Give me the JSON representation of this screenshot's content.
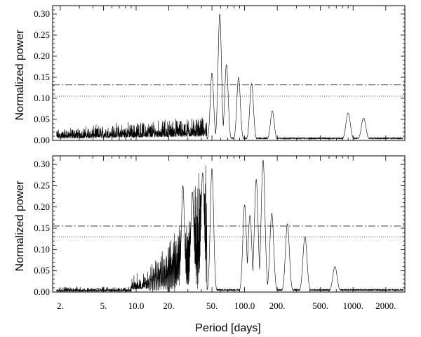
{
  "chart_data": [
    {
      "type": "line",
      "panel": "top",
      "xlabel": "",
      "ylabel": "Normalized power",
      "xscale": "log",
      "xlim": [
        1.7,
        3000
      ],
      "ylim": [
        0,
        0.32
      ],
      "yticks": [
        "0.00",
        "0.05",
        "0.10",
        "0.15",
        "0.20",
        "0.25",
        "0.30"
      ],
      "xticks": [],
      "thresholds": [
        {
          "style": "dash-dot",
          "value": 0.132
        },
        {
          "style": "dotted",
          "value": 0.105
        }
      ],
      "peaks": [
        {
          "period": 50,
          "power": 0.16
        },
        {
          "period": 59,
          "power": 0.3
        },
        {
          "period": 68,
          "power": 0.18
        },
        {
          "period": 88,
          "power": 0.15
        },
        {
          "period": 116,
          "power": 0.135
        },
        {
          "period": 180,
          "power": 0.07
        },
        {
          "period": 900,
          "power": 0.065
        },
        {
          "period": 1250,
          "power": 0.053
        }
      ]
    },
    {
      "type": "line",
      "panel": "bottom",
      "xlabel": "Period [days]",
      "ylabel": "Normalized power",
      "xscale": "log",
      "xlim": [
        1.7,
        3000
      ],
      "ylim": [
        0,
        0.32
      ],
      "yticks": [
        "0.00",
        "0.05",
        "0.10",
        "0.15",
        "0.20",
        "0.25",
        "0.30"
      ],
      "xticks": [
        "2.",
        "5.",
        "10.0",
        "20.",
        "50.",
        "100.0",
        "200.",
        "500.",
        "1000.",
        "2000."
      ],
      "thresholds": [
        {
          "style": "dash-dot",
          "value": 0.155
        },
        {
          "style": "dotted",
          "value": 0.13
        }
      ],
      "peaks": [
        {
          "period": 27,
          "power": 0.25
        },
        {
          "period": 33,
          "power": 0.235
        },
        {
          "period": 41,
          "power": 0.28
        },
        {
          "period": 50,
          "power": 0.29
        },
        {
          "period": 100,
          "power": 0.205
        },
        {
          "period": 112,
          "power": 0.18
        },
        {
          "period": 128,
          "power": 0.265
        },
        {
          "period": 148,
          "power": 0.31
        },
        {
          "period": 178,
          "power": 0.185
        },
        {
          "period": 248,
          "power": 0.16
        },
        {
          "period": 360,
          "power": 0.13
        },
        {
          "period": 680,
          "power": 0.06
        }
      ]
    }
  ]
}
